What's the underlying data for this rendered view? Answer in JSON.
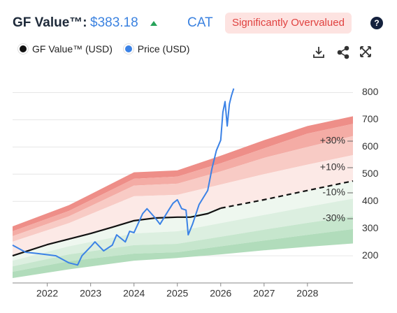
{
  "header": {
    "title": "GF Value™:",
    "price": "$383.18",
    "ticker": "CAT",
    "badge": "Significantly Overvalued",
    "help": "?"
  },
  "chart_data": {
    "type": "line",
    "xlim": [
      2021.2,
      2029.05
    ],
    "xticks": [
      2022,
      2023,
      2024,
      2025,
      2026,
      2027,
      2028
    ],
    "ylim": [
      100,
      845
    ],
    "yticks": [
      200,
      300,
      400,
      500,
      600,
      700,
      800
    ],
    "grid": true,
    "annotations": [
      "+30%",
      "+10%",
      "-10%",
      "-30%"
    ],
    "bands": {
      "x": [
        2021.2,
        2022.5,
        2024,
        2025,
        2026,
        2027,
        2028,
        2029.05
      ],
      "boundaries": [
        [
          308,
          386,
          507,
          514,
          568,
          625,
          677,
          713
        ],
        [
          290,
          365,
          483,
          491,
          540,
          595,
          649,
          685
        ],
        [
          272,
          345,
          458,
          465,
          510,
          560,
          600,
          640
        ],
        [
          252,
          320,
          419,
          424,
          462,
          500,
          535,
          570
        ],
        [
          200,
          260,
          329,
          342,
          375,
          406,
          440,
          475
        ],
        [
          182,
          235,
          282,
          290,
          320,
          350,
          380,
          410
        ],
        [
          161,
          205,
          239,
          244,
          270,
          296,
          321,
          345
        ],
        [
          141,
          180,
          208,
          213,
          235,
          256,
          277,
          298
        ],
        [
          118,
          150,
          182,
          192,
          205,
          220,
          233,
          245
        ]
      ],
      "colors": [
        "#ee8e88",
        "#f4aca5",
        "#f8cbc5",
        "#fce9e6",
        "#eef7ef",
        "#dcefe0",
        "#c6e6cd",
        "#b1dcbb"
      ]
    },
    "series": [
      {
        "name": "GF Value™ (USD)",
        "color": "#111111",
        "x": [
          2021.2,
          2022,
          2023,
          2023.5,
          2024,
          2024.5,
          2025,
          2025.3,
          2025.7,
          2026,
          2027,
          2028,
          2029.05
        ],
        "values": [
          200,
          241,
          282,
          305,
          329,
          339,
          342,
          342,
          355,
          375,
          null,
          null,
          null
        ],
        "projected_values": [
          null,
          null,
          null,
          null,
          null,
          null,
          null,
          null,
          null,
          375,
          406,
          440,
          475
        ]
      },
      {
        "name": "Price (USD)",
        "color": "#3b82e6",
        "x": [
          2021.2,
          2021.5,
          2021.8,
          2022.2,
          2022.5,
          2022.7,
          2022.8,
          2023,
          2023.1,
          2023.3,
          2023.5,
          2023.6,
          2023.8,
          2023.9,
          2024,
          2024.2,
          2024.3,
          2024.5,
          2024.6,
          2024.8,
          2024.9,
          2025,
          2025.1,
          2025.2,
          2025.25,
          2025.35,
          2025.5,
          2025.7,
          2025.8,
          2025.9,
          2026,
          2026.05,
          2026.1,
          2026.15,
          2026.2,
          2026.25,
          2026.3
        ],
        "values": [
          239,
          213,
          208,
          200,
          174,
          166,
          200,
          233,
          251,
          218,
          239,
          277,
          251,
          290,
          285,
          355,
          373,
          337,
          316,
          368,
          393,
          406,
          373,
          368,
          277,
          316,
          388,
          440,
          522,
          587,
          625,
          728,
          767,
          677,
          758,
          790,
          815
        ]
      }
    ]
  }
}
